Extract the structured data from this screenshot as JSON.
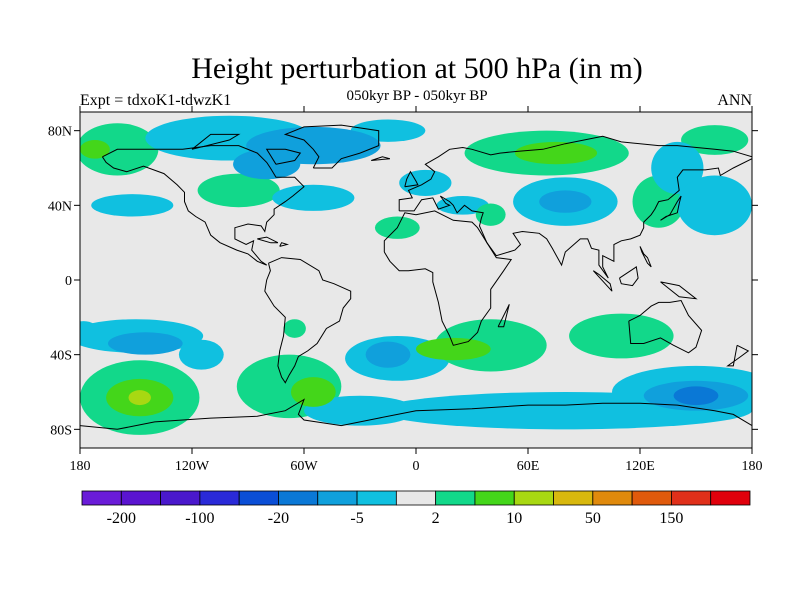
{
  "header": {
    "title": "Height perturbation at 500 hPa (in m)",
    "subtitle": "050kyr BP - 050kyr BP",
    "left_label": "Expt = tdxoK1-tdwzK1",
    "right_label": "ANN"
  },
  "map": {
    "projection": "equirectangular",
    "lon_range": [
      -180,
      180
    ],
    "lat_range": [
      -90,
      90
    ],
    "lon_ticks": [
      {
        "value": -180,
        "label": "180"
      },
      {
        "value": -120,
        "label": "120W"
      },
      {
        "value": -60,
        "label": "60W"
      },
      {
        "value": 0,
        "label": "0"
      },
      {
        "value": 60,
        "label": "60E"
      },
      {
        "value": 120,
        "label": "120E"
      },
      {
        "value": 180,
        "label": "180"
      }
    ],
    "lat_ticks": [
      {
        "value": 80,
        "label": "80N"
      },
      {
        "value": 40,
        "label": "40N"
      },
      {
        "value": 0,
        "label": "0"
      },
      {
        "value": -40,
        "label": "40S"
      },
      {
        "value": -80,
        "label": "80S"
      }
    ],
    "background_color": "#e8e8e8",
    "regions": [
      {
        "lon": -160,
        "lat": 70,
        "rlon": 22,
        "rlat": 14,
        "level": 1
      },
      {
        "lon": -172,
        "lat": 70,
        "rlon": 8,
        "rlat": 5,
        "level": 2
      },
      {
        "lon": -100,
        "lat": 76,
        "rlon": 45,
        "rlat": 12,
        "level": -1
      },
      {
        "lon": -55,
        "lat": 72,
        "rlon": 36,
        "rlat": 10,
        "level": -2
      },
      {
        "lon": -80,
        "lat": 62,
        "rlon": 18,
        "rlat": 8,
        "level": -2
      },
      {
        "lon": -15,
        "lat": 80,
        "rlon": 20,
        "rlat": 6,
        "level": -1
      },
      {
        "lon": -95,
        "lat": 48,
        "rlon": 22,
        "rlat": 9,
        "level": 1
      },
      {
        "lon": -152,
        "lat": 40,
        "rlon": 22,
        "rlat": 6,
        "level": -1
      },
      {
        "lon": -55,
        "lat": 44,
        "rlon": 22,
        "rlat": 7,
        "level": -1
      },
      {
        "lon": -10,
        "lat": 28,
        "rlon": 12,
        "rlat": 6,
        "level": 1
      },
      {
        "lon": 5,
        "lat": 52,
        "rlon": 14,
        "rlat": 7,
        "level": -1
      },
      {
        "lon": 25,
        "lat": 40,
        "rlon": 14,
        "rlat": 5,
        "level": -1
      },
      {
        "lon": 40,
        "lat": 35,
        "rlon": 8,
        "rlat": 6,
        "level": 1
      },
      {
        "lon": 70,
        "lat": 68,
        "rlon": 44,
        "rlat": 12,
        "level": 1
      },
      {
        "lon": 75,
        "lat": 68,
        "rlon": 22,
        "rlat": 6,
        "level": 2
      },
      {
        "lon": 80,
        "lat": 42,
        "rlon": 28,
        "rlat": 13,
        "level": -1
      },
      {
        "lon": 80,
        "lat": 42,
        "rlon": 14,
        "rlat": 6,
        "level": -2
      },
      {
        "lon": 130,
        "lat": 42,
        "rlon": 14,
        "rlat": 14,
        "level": 1
      },
      {
        "lon": 160,
        "lat": 75,
        "rlon": 18,
        "rlat": 8,
        "level": 1
      },
      {
        "lon": 140,
        "lat": 60,
        "rlon": 14,
        "rlat": 14,
        "level": -1
      },
      {
        "lon": 160,
        "lat": 40,
        "rlon": 20,
        "rlat": 16,
        "level": -1
      },
      {
        "lon": -150,
        "lat": -30,
        "rlon": 36,
        "rlat": 9,
        "level": -1
      },
      {
        "lon": -145,
        "lat": -34,
        "rlon": 20,
        "rlat": 6,
        "level": -2
      },
      {
        "lon": -178,
        "lat": -28,
        "rlon": 8,
        "rlat": 6,
        "level": -1
      },
      {
        "lon": -115,
        "lat": -40,
        "rlon": 12,
        "rlat": 8,
        "level": -1
      },
      {
        "lon": -148,
        "lat": -63,
        "rlon": 32,
        "rlat": 20,
        "level": 1
      },
      {
        "lon": -148,
        "lat": -63,
        "rlon": 18,
        "rlat": 10,
        "level": 2
      },
      {
        "lon": -148,
        "lat": -63,
        "rlon": 6,
        "rlat": 4,
        "level": 3
      },
      {
        "lon": -68,
        "lat": -57,
        "rlon": 28,
        "rlat": 17,
        "level": 1
      },
      {
        "lon": -55,
        "lat": -60,
        "rlon": 12,
        "rlat": 8,
        "level": 2
      },
      {
        "lon": -65,
        "lat": -26,
        "rlon": 6,
        "rlat": 5,
        "level": 1
      },
      {
        "lon": -10,
        "lat": -42,
        "rlon": 28,
        "rlat": 12,
        "level": -1
      },
      {
        "lon": -15,
        "lat": -40,
        "rlon": 12,
        "rlat": 7,
        "level": -2
      },
      {
        "lon": 40,
        "lat": -35,
        "rlon": 30,
        "rlat": 14,
        "level": 1
      },
      {
        "lon": 20,
        "lat": -37,
        "rlon": 20,
        "rlat": 6,
        "level": 2
      },
      {
        "lon": 80,
        "lat": -70,
        "rlon": 100,
        "rlat": 10,
        "level": -1
      },
      {
        "lon": -30,
        "lat": -70,
        "rlon": 30,
        "rlat": 8,
        "level": -1
      },
      {
        "lon": 110,
        "lat": -30,
        "rlon": 28,
        "rlat": 12,
        "level": 1
      },
      {
        "lon": 150,
        "lat": -60,
        "rlon": 45,
        "rlat": 14,
        "level": -1
      },
      {
        "lon": 150,
        "lat": -62,
        "rlon": 28,
        "rlat": 8,
        "level": -2
      },
      {
        "lon": 150,
        "lat": -62,
        "rlon": 12,
        "rlat": 5,
        "level": -3
      }
    ]
  },
  "colorbar": {
    "colors": [
      "#6a1cd8",
      "#5a14d0",
      "#4a18cc",
      "#2a2ad8",
      "#0a4ed6",
      "#0a78d6",
      "#10a0dc",
      "#10c0e0",
      "#e8e8e8",
      "#12d88a",
      "#44d61a",
      "#a8d812",
      "#d8b80e",
      "#e08a0c",
      "#e05a0c",
      "#e0301a",
      "#e0000c"
    ],
    "labels": [
      {
        "boundary_index": 1,
        "label": "-200"
      },
      {
        "boundary_index": 3,
        "label": "-100"
      },
      {
        "boundary_index": 5,
        "label": "-20"
      },
      {
        "boundary_index": 7,
        "label": "-5"
      },
      {
        "boundary_index": 9,
        "label": "2"
      },
      {
        "boundary_index": 11,
        "label": "10"
      },
      {
        "boundary_index": 13,
        "label": "50"
      },
      {
        "boundary_index": 15,
        "label": "150"
      }
    ]
  }
}
